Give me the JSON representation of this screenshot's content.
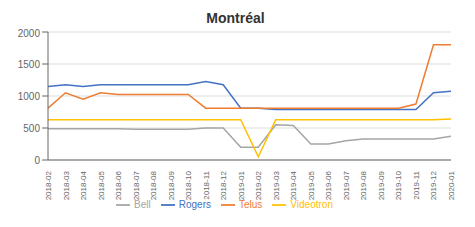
{
  "chart_data": {
    "type": "line",
    "title": "Montréal",
    "categories": [
      "2018-02",
      "2018-03",
      "2018-04",
      "2018-05",
      "2018-06",
      "2018-07",
      "2018-08",
      "2018-09",
      "2018-10",
      "2018-11",
      "2018-12",
      "2019-01",
      "2019-02",
      "2019-03",
      "2019-04",
      "2019-05",
      "2019-06",
      "2019-07",
      "2019-08",
      "2019-09",
      "2019-10",
      "2019-11",
      "2019-12",
      "2020-01"
    ],
    "series": [
      {
        "name": "Rogers",
        "color": "#4472C4",
        "values": [
          1150,
          1175,
          1150,
          1175,
          1175,
          1175,
          1175,
          1175,
          1175,
          1225,
          1175,
          810,
          810,
          790,
          790,
          790,
          790,
          790,
          790,
          790,
          790,
          790,
          1050,
          1075
        ]
      },
      {
        "name": "Telus",
        "color": "#ED7D31",
        "values": [
          810,
          1050,
          950,
          1050,
          1025,
          1025,
          1025,
          1025,
          1025,
          810,
          810,
          810,
          810,
          810,
          810,
          810,
          810,
          810,
          810,
          810,
          810,
          875,
          1800,
          1800
        ]
      },
      {
        "name": "Bell",
        "color": "#A5A5A5",
        "values": [
          490,
          490,
          490,
          490,
          490,
          480,
          480,
          480,
          480,
          500,
          500,
          200,
          200,
          550,
          540,
          250,
          250,
          300,
          330,
          330,
          330,
          330,
          330,
          370
        ]
      },
      {
        "name": "Videotron",
        "color": "#FFC000",
        "values": [
          630,
          630,
          630,
          630,
          630,
          630,
          630,
          630,
          630,
          630,
          630,
          630,
          50,
          630,
          630,
          630,
          630,
          630,
          630,
          630,
          630,
          630,
          630,
          640
        ]
      }
    ],
    "ylim": [
      0,
      2000
    ],
    "yticks": [
      0,
      500,
      1000,
      1500,
      2000
    ],
    "grid": true,
    "legend": "bottom"
  }
}
